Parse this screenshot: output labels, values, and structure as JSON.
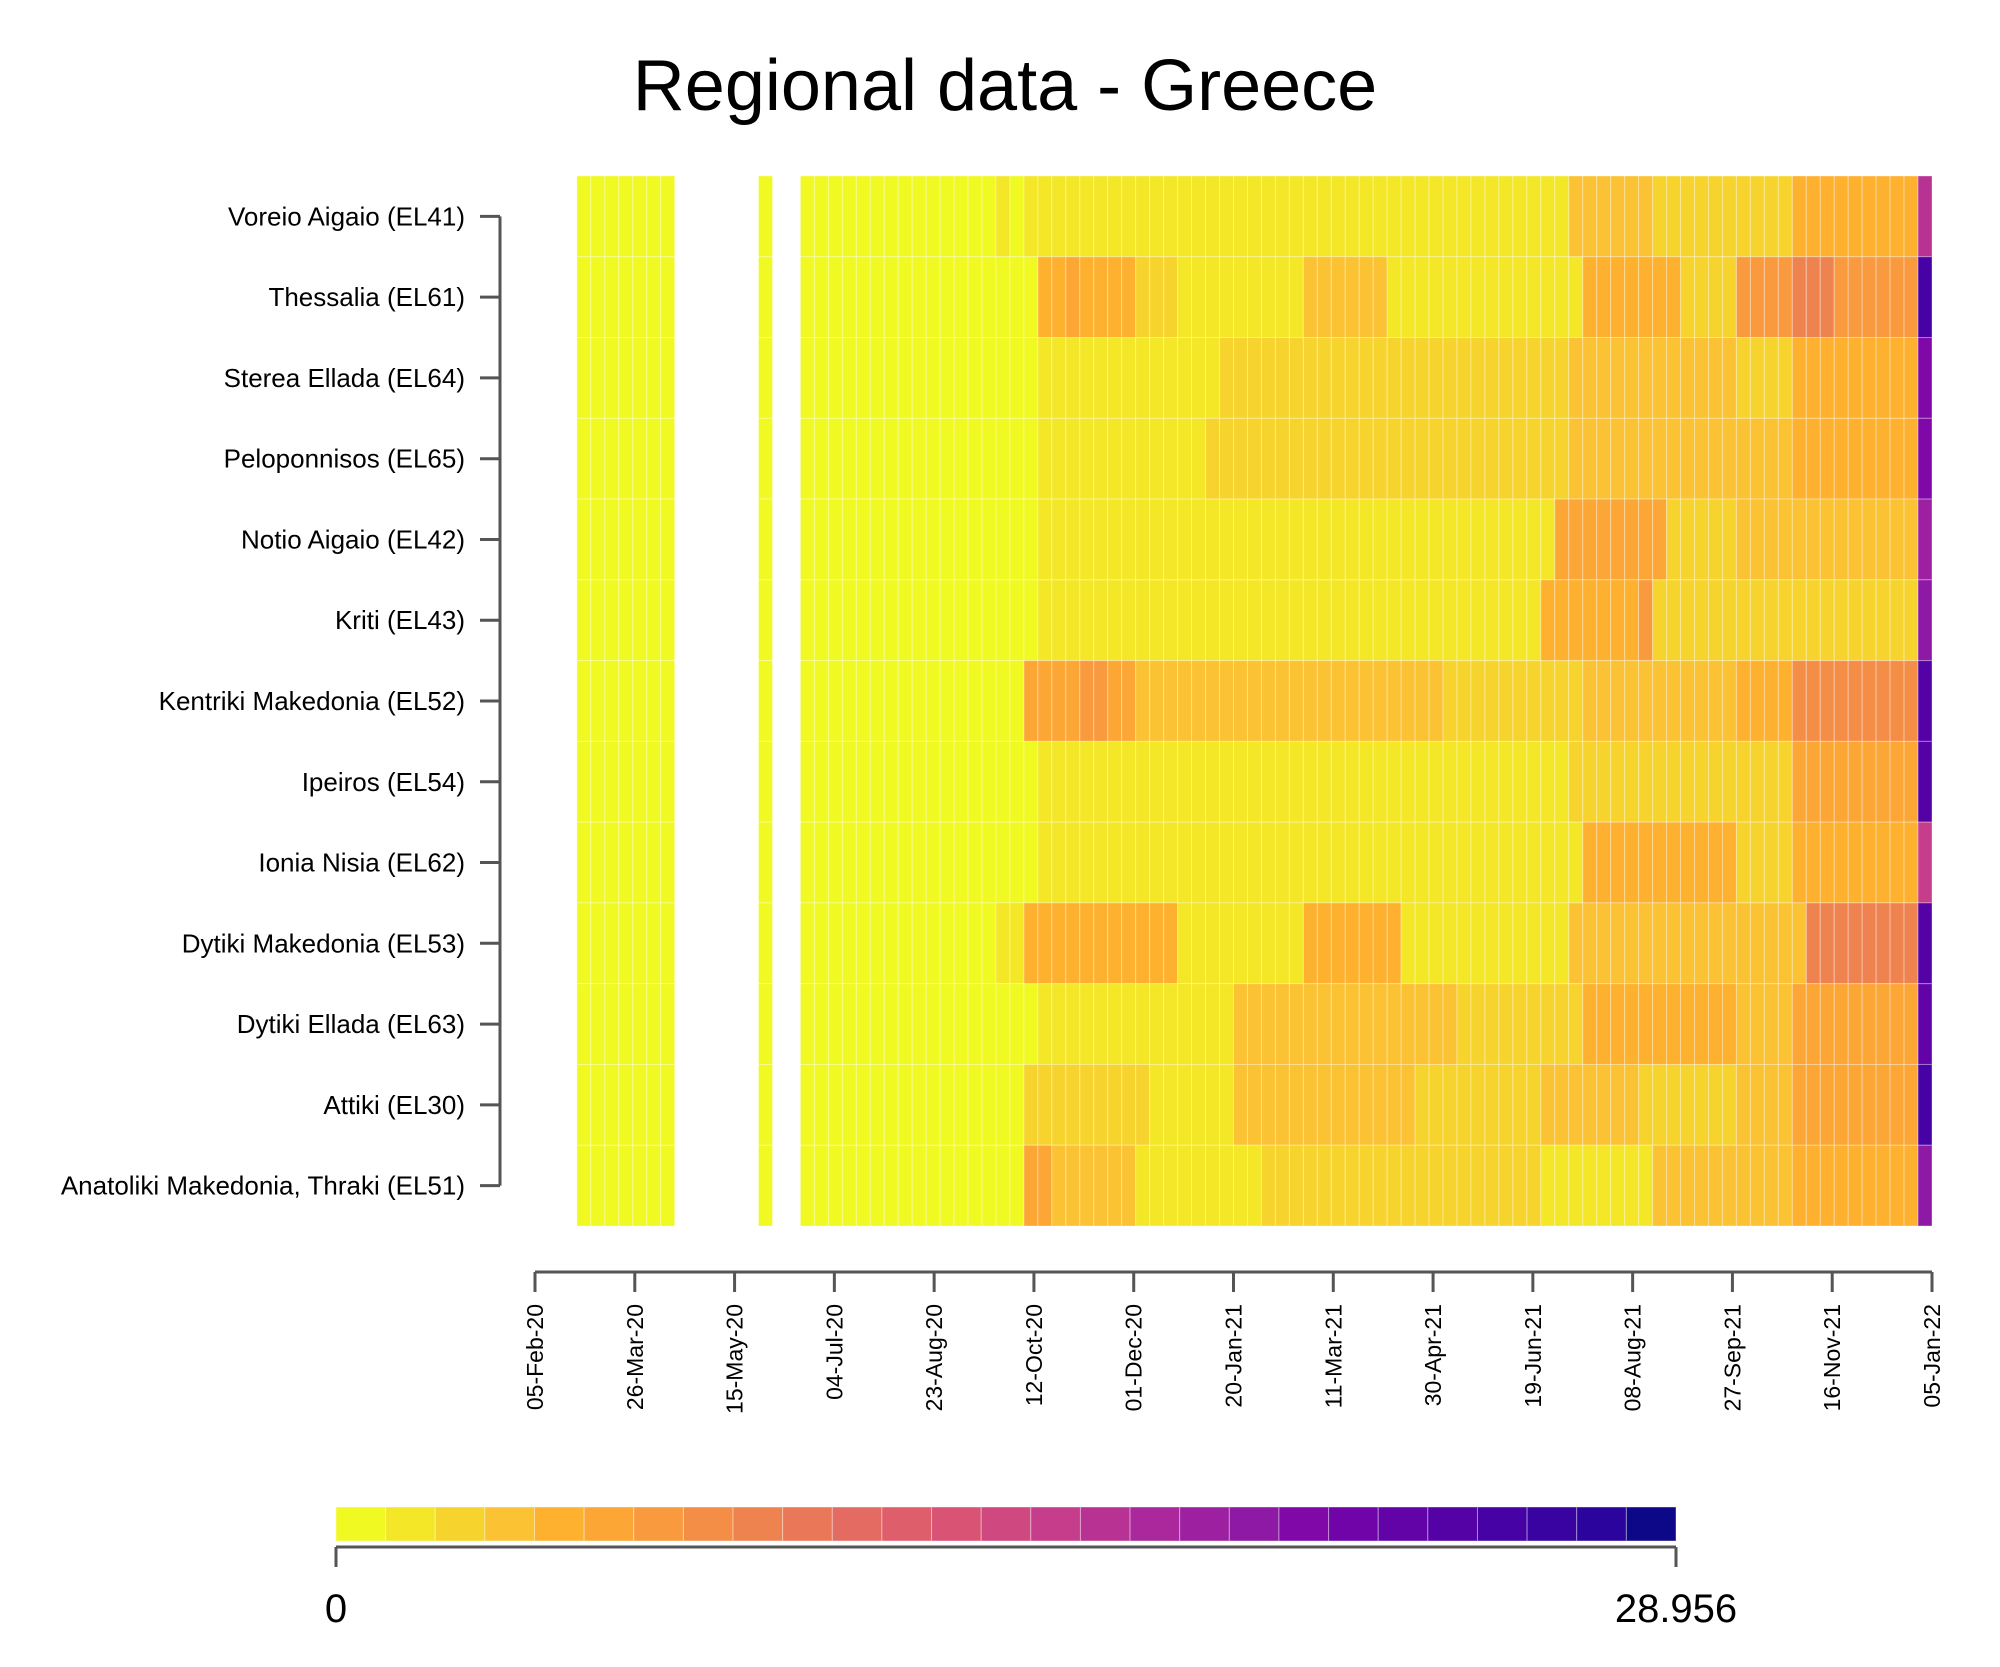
{
  "chart_data": {
    "type": "heatmap",
    "title": "Regional data - Greece",
    "xlabel": "",
    "ylabel": "",
    "grid": false,
    "legend_position": "bottom",
    "colorbar": {
      "min": 0,
      "max": 28.956,
      "min_label": "0",
      "max_label": "28.956",
      "colors": [
        "#f0f921",
        "#f3e727",
        "#f7d42d",
        "#fbc233",
        "#fdb12f",
        "#fca636",
        "#f99a3e",
        "#f48e47",
        "#ef8350",
        "#e97758",
        "#e46b61",
        "#de5f6b",
        "#d85374",
        "#cf4880",
        "#c63d8c",
        "#b83294",
        "#aa279c",
        "#9c20a0",
        "#8e19a4",
        "#8008a8",
        "#7004a8",
        "#6203a8",
        "#5401a6",
        "#4602a4",
        "#3903a1",
        "#2a049d",
        "#0d0887"
      ]
    },
    "regions": [
      "Voreio Aigaio (EL41)",
      "Thessalia (EL61)",
      "Sterea Ellada (EL64)",
      "Peloponnisos (EL65)",
      "Notio Aigaio (EL42)",
      "Kriti (EL43)",
      "Kentriki Makedonia (EL52)",
      "Ipeiros (EL54)",
      "Ionia Nisia (EL62)",
      "Dytiki Makedonia (EL53)",
      "Dytiki Ellada (EL63)",
      "Attiki (EL30)",
      "Anatoliki Makedonia, Thraki (EL51)"
    ],
    "x_tick_labels": [
      "05-Feb-20",
      "26-Mar-20",
      "15-May-20",
      "04-Jul-20",
      "23-Aug-20",
      "12-Oct-20",
      "01-Dec-20",
      "20-Jan-21",
      "11-Mar-21",
      "30-Apr-21",
      "19-Jun-21",
      "08-Aug-21",
      "27-Sep-21",
      "16-Nov-21",
      "05-Jan-22"
    ],
    "x_range": [
      "05-Feb-20",
      "05-Jan-22"
    ],
    "data_start": "26-Feb-20",
    "data_end": "04-Jan-22",
    "missing_periods": [
      [
        "18-Apr-20",
        "29-Apr-20"
      ],
      [
        "04-May-20",
        "09-May-20"
      ],
      [
        "13-May-20",
        "19-May-20"
      ],
      [
        "21-May-20",
        "23-May-20"
      ],
      [
        "06-Jun-20",
        "10-Jun-20"
      ]
    ],
    "value_segments": {
      "Voreio Aigaio (EL41)": [
        [
          "26-Feb-20",
          "09-Oct-20",
          0.5
        ],
        [
          "10-Oct-20",
          "01-Apr-21",
          1.5
        ],
        [
          "02-Apr-21",
          "03-Jul-21",
          2.0
        ],
        [
          "04-Jul-21",
          "14-Aug-21",
          3.5
        ],
        [
          "15-Aug-21",
          "17-Sep-21",
          3.0
        ],
        [
          "18-Sep-21",
          "28-Oct-21",
          2.5
        ],
        [
          "29-Oct-21",
          "26-Dec-21",
          5.0
        ],
        [
          "27-Dec-21",
          "04-Jan-22",
          17.0
        ]
      ],
      "Thessalia (EL61)": [
        [
          "26-Feb-20",
          "15-Oct-20",
          0.5
        ],
        [
          "16-Oct-20",
          "28-Nov-20",
          4.5
        ],
        [
          "29-Nov-20",
          "22-Dec-20",
          2.5
        ],
        [
          "23-Dec-20",
          "21-Feb-21",
          1.5
        ],
        [
          "22-Feb-21",
          "08-Apr-21",
          4.0
        ],
        [
          "09-Apr-21",
          "15-Jul-21",
          2.0
        ],
        [
          "16-Jul-21",
          "28-Aug-21",
          4.5
        ],
        [
          "29-Aug-21",
          "26-Sep-21",
          3.0
        ],
        [
          "27-Sep-21",
          "28-Oct-21",
          6.5
        ],
        [
          "29-Oct-21",
          "18-Nov-21",
          9.5
        ],
        [
          "19-Nov-21",
          "26-Dec-21",
          6.5
        ],
        [
          "27-Dec-21",
          "04-Jan-22",
          25.0
        ]
      ],
      "Sterea Ellada (EL64)": [
        [
          "26-Feb-20",
          "15-Oct-20",
          0.5
        ],
        [
          "16-Oct-20",
          "10-Jan-21",
          1.5
        ],
        [
          "11-Jan-21",
          "06-Jul-21",
          2.5
        ],
        [
          "07-Jul-21",
          "25-Sep-21",
          4.0
        ],
        [
          "26-Sep-21",
          "28-Oct-21",
          3.0
        ],
        [
          "29-Oct-21",
          "26-Dec-21",
          5.0
        ],
        [
          "27-Dec-21",
          "04-Jan-22",
          21.0
        ]
      ],
      "Peloponnisos (EL65)": [
        [
          "26-Feb-20",
          "14-Oct-20",
          0.5
        ],
        [
          "15-Oct-20",
          "04-Jan-21",
          1.5
        ],
        [
          "05-Jan-21",
          "06-Jul-21",
          2.5
        ],
        [
          "07-Jul-21",
          "29-Sep-21",
          4.0
        ],
        [
          "30-Sep-21",
          "28-Oct-21",
          3.5
        ],
        [
          "29-Oct-21",
          "26-Dec-21",
          5.0
        ],
        [
          "27-Dec-21",
          "04-Jan-22",
          21.0
        ]
      ],
      "Notio Aigaio (EL42)": [
        [
          "26-Feb-20",
          "15-Oct-20",
          0.5
        ],
        [
          "16-Oct-20",
          "30-Jun-21",
          1.5
        ],
        [
          "01-Jul-21",
          "22-Aug-21",
          5.5
        ],
        [
          "23-Aug-21",
          "30-Sep-21",
          3.0
        ],
        [
          "01-Oct-21",
          "26-Dec-21",
          3.5
        ],
        [
          "27-Dec-21",
          "04-Jan-22",
          19.0
        ]
      ],
      "Kriti (EL43)": [
        [
          "26-Feb-20",
          "15-Oct-20",
          0.5
        ],
        [
          "16-Oct-20",
          "20-Jun-21",
          1.5
        ],
        [
          "21-Jun-21",
          "15-Aug-21",
          4.5
        ],
        [
          "16-Aug-21",
          "26-Dec-21",
          3.0
        ],
        [
          "27-Dec-21",
          "04-Jan-22",
          20.0
        ]
      ],
      "Kentriki Makedonia (EL52)": [
        [
          "26-Feb-20",
          "03-Oct-20",
          0.5
        ],
        [
          "04-Oct-20",
          "02-Dec-20",
          6.0
        ],
        [
          "03-Dec-20",
          "21-Jan-21",
          3.5
        ],
        [
          "22-Jan-21",
          "03-May-21",
          4.0
        ],
        [
          "04-May-21",
          "15-Jul-21",
          2.5
        ],
        [
          "16-Jul-21",
          "29-Sep-21",
          4.0
        ],
        [
          "30-Sep-21",
          "26-Oct-21",
          5.0
        ],
        [
          "27-Oct-21",
          "26-Dec-21",
          8.0
        ],
        [
          "27-Dec-21",
          "04-Jan-22",
          24.0
        ]
      ],
      "Ipeiros (EL54)": [
        [
          "26-Feb-20",
          "15-Oct-20",
          0.5
        ],
        [
          "16-Oct-20",
          "04-Jul-21",
          1.5
        ],
        [
          "05-Jul-21",
          "28-Oct-21",
          3.0
        ],
        [
          "29-Oct-21",
          "26-Dec-21",
          6.0
        ],
        [
          "27-Dec-21",
          "04-Jan-22",
          24.0
        ]
      ],
      "Ionia Nisia (EL62)": [
        [
          "26-Feb-20",
          "15-Oct-20",
          0.5
        ],
        [
          "16-Oct-20",
          "14-Jul-21",
          1.5
        ],
        [
          "15-Jul-21",
          "29-Sep-21",
          4.5
        ],
        [
          "30-Sep-21",
          "28-Oct-21",
          3.0
        ],
        [
          "29-Oct-21",
          "26-Dec-21",
          5.0
        ],
        [
          "27-Dec-21",
          "04-Jan-22",
          16.0
        ]
      ],
      "Dytiki Makedonia (EL53)": [
        [
          "26-Feb-20",
          "20-Sep-20",
          0.5
        ],
        [
          "21-Sep-20",
          "05-Oct-20",
          2.0
        ],
        [
          "06-Oct-20",
          "23-Dec-20",
          4.5
        ],
        [
          "24-Dec-20",
          "25-Feb-21",
          2.0
        ],
        [
          "26-Feb-21",
          "12-Apr-21",
          5.0
        ],
        [
          "13-Apr-21",
          "06-Jul-21",
          2.0
        ],
        [
          "07-Jul-21",
          "25-Sep-21",
          3.5
        ],
        [
          "26-Sep-21",
          "30-Oct-21",
          4.0
        ],
        [
          "31-Oct-21",
          "26-Dec-21",
          9.0
        ],
        [
          "27-Dec-21",
          "04-Jan-22",
          24.0
        ]
      ],
      "Dytiki Ellada (EL63)": [
        [
          "26-Feb-20",
          "15-Oct-20",
          0.5
        ],
        [
          "16-Oct-20",
          "21-Jan-21",
          2.0
        ],
        [
          "22-Jan-21",
          "10-May-21",
          3.5
        ],
        [
          "11-May-21",
          "15-Jul-21",
          2.5
        ],
        [
          "16-Jul-21",
          "28-Sep-21",
          4.5
        ],
        [
          "29-Sep-21",
          "28-Oct-21",
          3.5
        ],
        [
          "29-Oct-21",
          "26-Dec-21",
          5.5
        ],
        [
          "27-Dec-21",
          "04-Jan-22",
          23.0
        ]
      ],
      "Attiki (EL30)": [
        [
          "26-Feb-20",
          "04-Oct-20",
          0.5
        ],
        [
          "05-Oct-20",
          "09-Dec-20",
          3.0
        ],
        [
          "10-Dec-20",
          "20-Jan-21",
          2.0
        ],
        [
          "21-Jan-21",
          "20-Apr-21",
          4.0
        ],
        [
          "21-Apr-21",
          "22-Jun-21",
          2.5
        ],
        [
          "23-Jun-21",
          "08-Aug-21",
          3.5
        ],
        [
          "09-Aug-21",
          "28-Sep-21",
          3.0
        ],
        [
          "29-Sep-21",
          "28-Oct-21",
          3.5
        ],
        [
          "29-Oct-21",
          "26-Dec-21",
          5.5
        ],
        [
          "27-Dec-21",
          "04-Jan-22",
          25.0
        ]
      ],
      "Anatoliki Makedonia, Thraki (EL51)": [
        [
          "26-Feb-20",
          "05-Oct-20",
          0.5
        ],
        [
          "06-Oct-20",
          "29-Nov-20",
          4.0
        ],
        [
          "30-Nov-20",
          "02-Feb-21",
          2.0
        ],
        [
          "03-Feb-21",
          "20-Jun-21",
          2.5
        ],
        [
          "21-Jun-21",
          "14-Aug-21",
          2.0
        ],
        [
          "15-Aug-21",
          "23-Sep-21",
          3.5
        ],
        [
          "24-Sep-21",
          "28-Oct-21",
          4.0
        ],
        [
          "29-Oct-21",
          "26-Dec-21",
          5.0
        ],
        [
          "27-Dec-21",
          "04-Jan-22",
          20.0
        ]
      ]
    },
    "outliers": [
      {
        "region": "Dytiki Makedonia (EL53)",
        "start": "08-May-20",
        "end": "12-May-20",
        "value": 4.0
      },
      {
        "region": "Peloponnisos (EL65)",
        "start": "12-Apr-20",
        "end": "16-Apr-20",
        "value": 1.5
      },
      {
        "region": "Voreio Aigaio (EL41)",
        "start": "25-Sep-20",
        "end": "29-Sep-20",
        "value": 2.0
      },
      {
        "region": "Thessalia (EL61)",
        "start": "25-Oct-20",
        "end": "06-Nov-20",
        "value": 5.5
      },
      {
        "region": "Kentriki Makedonia (EL52)",
        "start": "05-Nov-20",
        "end": "20-Nov-20",
        "value": 7.0
      },
      {
        "region": "Kriti (EL43)",
        "start": "12-Aug-21",
        "end": "18-Aug-21",
        "value": 6.5
      },
      {
        "region": "Anatoliki Makedonia, Thraki (EL51)",
        "start": "08-Oct-20",
        "end": "18-Oct-20",
        "value": 5.5
      }
    ]
  }
}
